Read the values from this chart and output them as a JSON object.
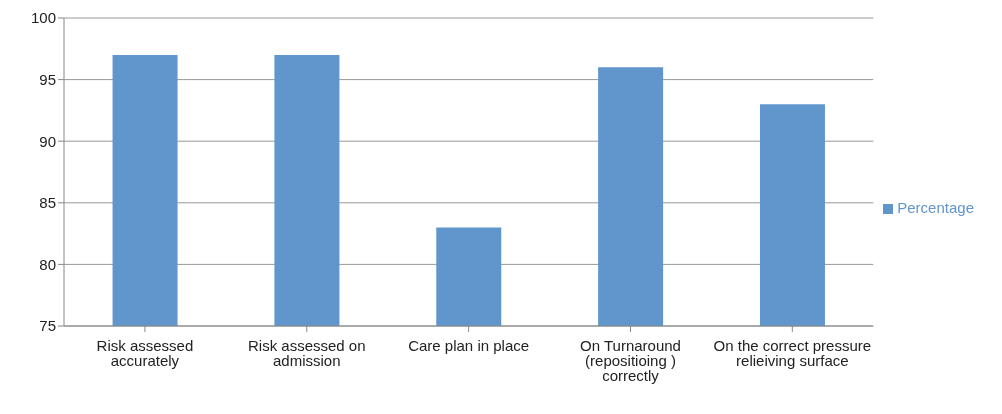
{
  "chart_data": {
    "type": "bar",
    "categories": [
      "Risk assessed accurately",
      "Risk assessed on admission",
      "Care plan in place",
      "On Turnaround (repositioing ) correctly",
      "On the correct pressure relieiving surface"
    ],
    "series": [
      {
        "name": "Percentage",
        "color": "#6096cc",
        "values": [
          97,
          97,
          83,
          96,
          93
        ]
      }
    ],
    "ylim": [
      75,
      100
    ],
    "yticks": [
      75,
      80,
      85,
      90,
      95,
      100
    ],
    "grid": "y",
    "legend": "right"
  }
}
